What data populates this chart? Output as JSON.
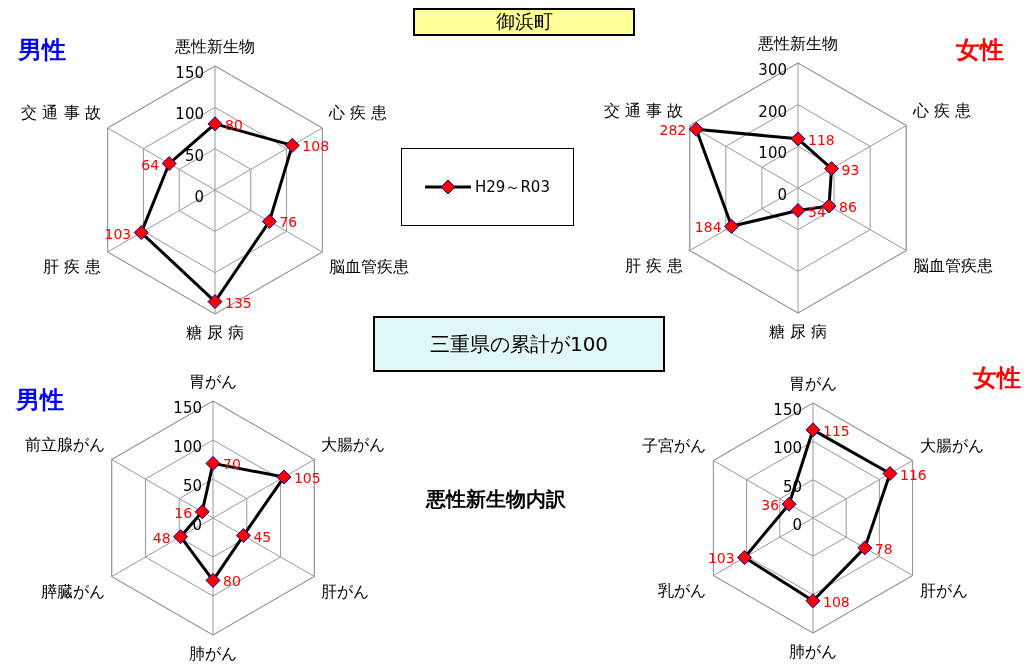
{
  "chart_data": [
    {
      "type": "radar",
      "title": "男性",
      "annotations": [
        "御浜町",
        "三重県の累計が100"
      ],
      "categories": [
        "悪性新生物",
        "心 疾 患",
        "脳血管疾患",
        "糖 尿 病",
        "肝 疾 患",
        "交 通 事 故"
      ],
      "series": [
        {
          "name": "H29～R03",
          "color": "#000000",
          "values": [
            80,
            108,
            76,
            135,
            103,
            64
          ]
        }
      ],
      "ylim": [
        0,
        150
      ],
      "yticks": [
        0,
        50,
        100,
        150
      ],
      "data_labels": true,
      "marker": "diamond",
      "legend": "right"
    },
    {
      "type": "radar",
      "title": "女性",
      "categories": [
        "悪性新生物",
        "心 疾 患",
        "脳血管疾患",
        "糖 尿 病",
        "肝 疾 患",
        "交 通 事 故"
      ],
      "series": [
        {
          "color": "#000000",
          "values": [
            118,
            93,
            86,
            54,
            184,
            282
          ]
        }
      ],
      "ylim": [
        0,
        300
      ],
      "yticks": [
        0,
        100,
        200,
        300
      ],
      "data_labels": true,
      "marker": "diamond"
    },
    {
      "type": "radar",
      "title": "男性",
      "annotations": [
        "悪性新生物内訳"
      ],
      "categories": [
        "胃がん",
        "大腸がん",
        "肝がん",
        "肺がん",
        "膵臓がん",
        "前立腺がん"
      ],
      "series": [
        {
          "color": "#000000",
          "values": [
            70,
            105,
            45,
            80,
            48,
            16
          ]
        }
      ],
      "ylim": [
        0,
        150
      ],
      "yticks": [
        0,
        50,
        100,
        150
      ],
      "data_labels": true,
      "marker": "diamond"
    },
    {
      "type": "radar",
      "title": "女性",
      "categories": [
        "胃がん",
        "大腸がん",
        "肝がん",
        "肺がん",
        "乳がん",
        "子宮がん"
      ],
      "series": [
        {
          "color": "#000000",
          "values": [
            115,
            116,
            78,
            108,
            103,
            36
          ]
        }
      ],
      "ylim": [
        0,
        150
      ],
      "yticks": [
        0,
        50,
        100,
        150
      ],
      "data_labels": true,
      "marker": "diamond"
    }
  ]
}
